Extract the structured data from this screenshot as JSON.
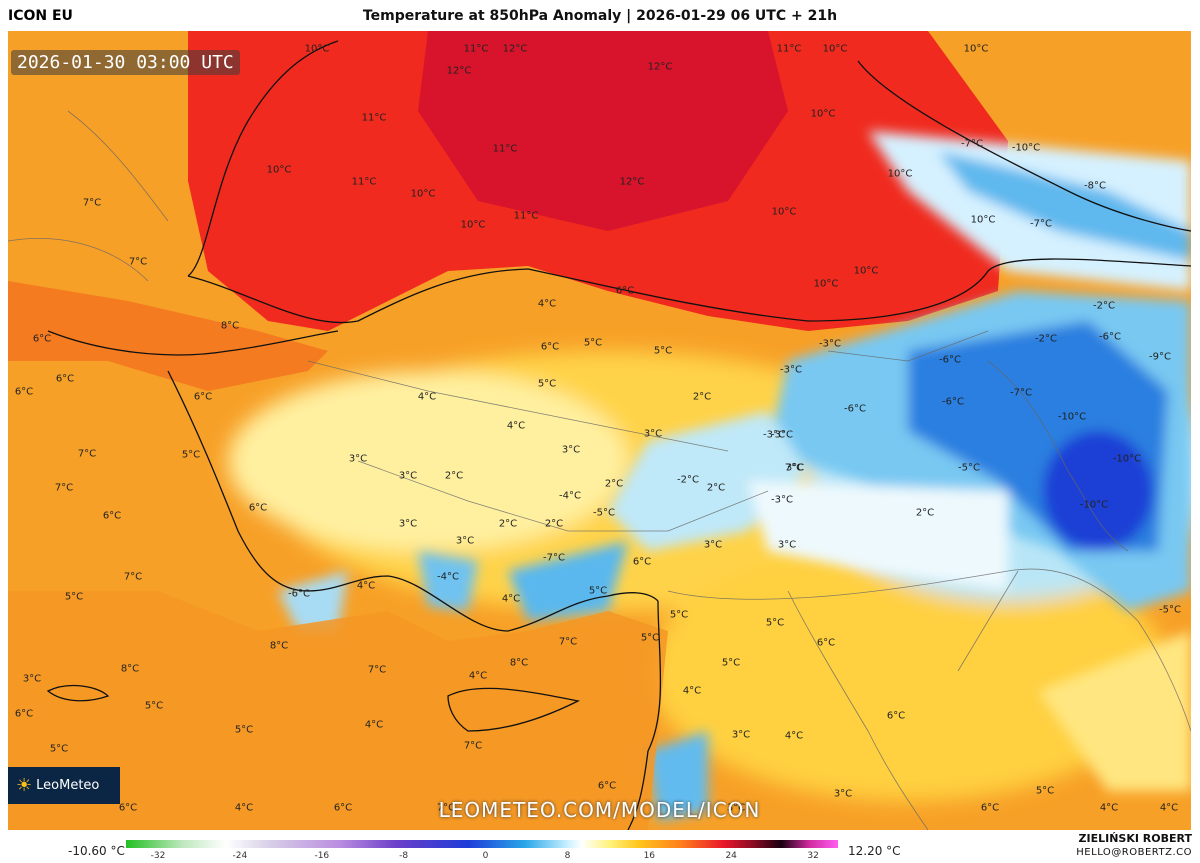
{
  "header": {
    "brand": "ICON EU",
    "title": "Temperature at 850hPa Anomaly | 2026-01-29 06 UTC + 21h"
  },
  "map": {
    "valid_time": "2026-01-30 03:00 UTC",
    "watermark": "LEOMETEO.COM/MODEL/ICON",
    "logo_text": "LeoMeteo",
    "labels": [
      "10°C",
      "11°C",
      "12°C",
      "12°C",
      "12°C",
      "11°C",
      "10°C",
      "10°C",
      "11°C",
      "10°C",
      "11°C",
      "11°C",
      "12°C",
      "10°C",
      "10°C",
      "11°C",
      "10°C",
      "10°C",
      "10°C",
      "10°C",
      "10°C",
      "10°C",
      "7°C",
      "7°C",
      "8°C",
      "6°C",
      "6°C",
      "6°C",
      "7°C",
      "7°C",
      "5°C",
      "6°C",
      "6°C",
      "6°C",
      "4°C",
      "4°C",
      "3°C",
      "3°C",
      "2°C",
      "3°C",
      "3°C",
      "2°C",
      "2°C",
      "3°C",
      "2°C",
      "2°C",
      "3°C",
      "2°C",
      "4°C",
      "5°C",
      "6°C",
      "5°C",
      "5°C",
      "4°C",
      "4°C",
      "6°C",
      "5°C",
      "4°C",
      "-3°C",
      "-4°C",
      "-5°C",
      "-7°C",
      "-6°C",
      "-4°C",
      "-3°C",
      "-3°C",
      "-2°C",
      "-3°C",
      "-2°C",
      "-2°C",
      "-6°C",
      "-6°C",
      "-7°C",
      "-6°C",
      "-7°C",
      "-10°C",
      "-10°C",
      "-10°C",
      "-7°C",
      "-10°C",
      "-8°C",
      "-6°C",
      "-9°C",
      "-5°C",
      "-5°C",
      "-3°C",
      "2°C",
      "3°C",
      "3°C",
      "6°C",
      "6°C",
      "5°C",
      "5°C",
      "6°C",
      "5°C",
      "4°C",
      "3°C",
      "4°C",
      "6°C",
      "3°C",
      "3°C",
      "5°C",
      "4°C",
      "8°C",
      "4°C",
      "7°C",
      "7°C",
      "7°C",
      "7°C",
      "8°C",
      "8°C",
      "5°C",
      "5°C",
      "6°C",
      "5°C",
      "4°C",
      "4°C",
      "5°C",
      "7°C",
      "6°C",
      "6°C",
      "3°C",
      "3°C",
      "5°C",
      "6°C",
      "7°C",
      "2°C"
    ]
  },
  "legend": {
    "min_label": "-10.60 °C",
    "max_label": "12.20 °C",
    "ticks": [
      "-32",
      "-24",
      "-16",
      "-8",
      "0",
      "8",
      "16",
      "24",
      "32"
    ]
  },
  "credit": {
    "name": "ZIELIŃSKI ROBERT",
    "email": "HELLO@ROBERTZ.CO"
  }
}
